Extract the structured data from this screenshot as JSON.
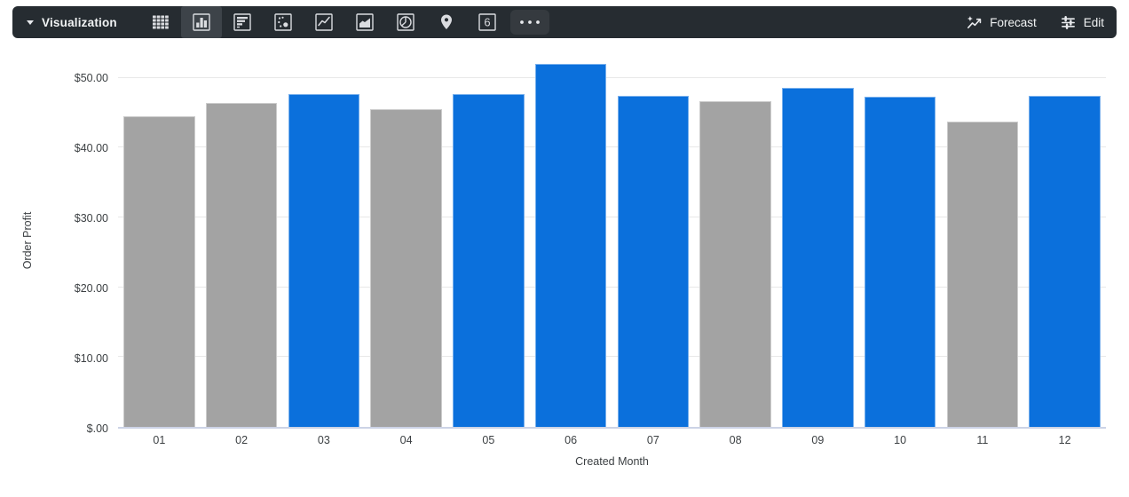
{
  "toolbar": {
    "title": "Visualization",
    "chart_types": [
      {
        "name": "table-icon",
        "selected": false
      },
      {
        "name": "column-chart-icon",
        "selected": true
      },
      {
        "name": "bar-chart-icon",
        "selected": false
      },
      {
        "name": "scatter-chart-icon",
        "selected": false
      },
      {
        "name": "line-chart-icon",
        "selected": false
      },
      {
        "name": "area-chart-icon",
        "selected": false
      },
      {
        "name": "pie-chart-icon",
        "selected": false
      },
      {
        "name": "map-pin-icon",
        "selected": false
      },
      {
        "name": "single-value-icon",
        "selected": false
      },
      {
        "name": "more-options-icon",
        "selected": false
      }
    ],
    "single_value_glyph": "6",
    "forecast_label": "Forecast",
    "edit_label": "Edit"
  },
  "chart_data": {
    "type": "bar",
    "title": "",
    "xlabel": "Created Month",
    "ylabel": "Order Profit",
    "categories": [
      "01",
      "02",
      "03",
      "04",
      "05",
      "06",
      "07",
      "08",
      "09",
      "10",
      "11",
      "12"
    ],
    "values": [
      44.5,
      46.4,
      47.6,
      45.5,
      47.6,
      52.0,
      47.4,
      46.7,
      48.6,
      47.3,
      43.7,
      47.4
    ],
    "bar_colors": [
      "gray",
      "gray",
      "blue",
      "gray",
      "blue",
      "blue",
      "blue",
      "gray",
      "blue",
      "blue",
      "gray",
      "blue"
    ],
    "colors": {
      "blue": "#0b70dc",
      "gray": "#a3a3a3"
    },
    "yticks": [
      {
        "value": 0,
        "label": "$.00"
      },
      {
        "value": 10,
        "label": "$10.00"
      },
      {
        "value": 20,
        "label": "$20.00"
      },
      {
        "value": 30,
        "label": "$30.00"
      },
      {
        "value": 40,
        "label": "$40.00"
      },
      {
        "value": 50,
        "label": "$50.00"
      }
    ],
    "ylim": [
      0,
      53.5
    ],
    "grid": true,
    "legend": "none"
  }
}
